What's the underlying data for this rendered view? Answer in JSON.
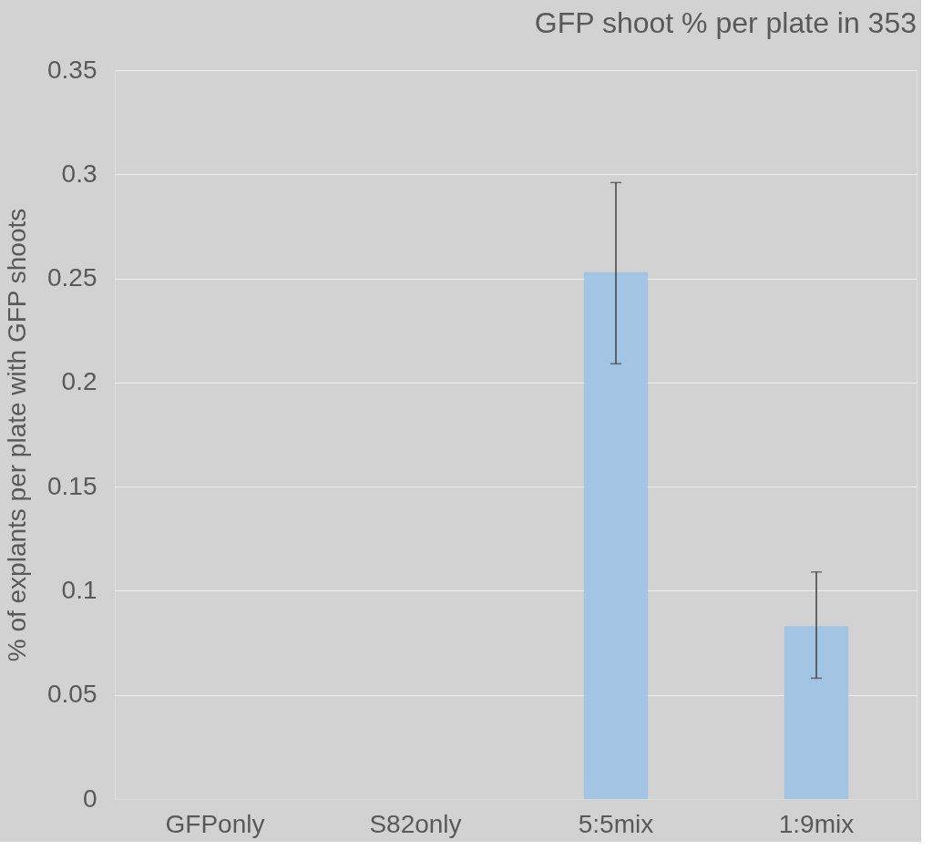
{
  "chart_data": {
    "type": "bar",
    "title": "GFP shoot % per plate in 353",
    "ylabel": "% of explants per plate with GFP shoots",
    "categories": [
      "GFPonly",
      "S82only",
      "5:5mix",
      "1:9mix"
    ],
    "values": [
      0,
      0,
      0.253,
      0.083
    ],
    "errors": [
      null,
      null,
      [
        0.209,
        0.296
      ],
      [
        0.058,
        0.109
      ]
    ],
    "color": "#a3c4e2",
    "ylim": [
      0,
      0.35
    ],
    "yticks": [
      0,
      0.05,
      0.1,
      0.15,
      0.2,
      0.25,
      0.3,
      0.35
    ],
    "grid": "y"
  }
}
